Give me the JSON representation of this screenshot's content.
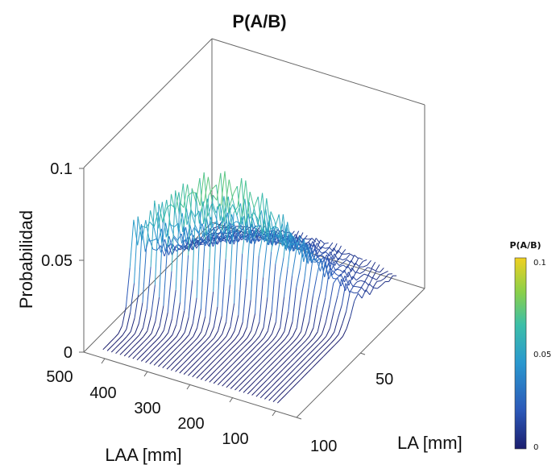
{
  "chart_data": {
    "type": "line",
    "subtype": "3d-waterfall",
    "title": "P(A/B)",
    "xlabel": "LAA [mm]",
    "ylabel": "LA [mm]",
    "zlabel": "Probabilidad",
    "x_ticks": [
      "500",
      "400",
      "300",
      "200",
      "100"
    ],
    "y_ticks": [
      "50",
      "100"
    ],
    "z_ticks": [
      "0",
      "0.05",
      "0.1"
    ],
    "xlim": [
      0,
      500
    ],
    "ylim": [
      0,
      100
    ],
    "zlim": [
      0,
      0.1
    ],
    "grid": false,
    "colorbar": {
      "title": "P(A/B)",
      "ticks": [
        "0.1",
        "0.05",
        "0"
      ],
      "range": [
        0,
        0.1
      ],
      "colors": [
        "#1b1e6e",
        "#2c58b8",
        "#2a98cf",
        "#3cbfa8",
        "#8ad04a",
        "#f0d020"
      ]
    },
    "series_description": "Family of curves P(A/B) vs LA, one per LAA value, peaking near 0.09 at low LA and decaying toward high LA"
  }
}
